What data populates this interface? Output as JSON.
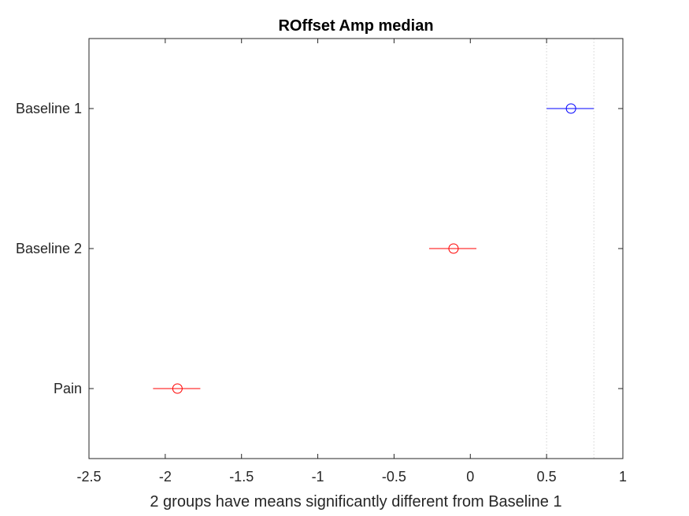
{
  "chart_data": {
    "type": "scatter",
    "title": "ROffset Amp median",
    "xlabel": "2 groups have means significantly different from Baseline 1",
    "ylabel": "",
    "xlim": [
      -2.5,
      1
    ],
    "x_ticks": [
      -2.5,
      -2,
      -1.5,
      -1,
      -0.5,
      0,
      0.5,
      1
    ],
    "x_tick_labels": [
      "-2.5",
      "-2",
      "-1.5",
      "-1",
      "-0.5",
      "0",
      "0.5",
      "1"
    ],
    "categories": [
      "Baseline 1",
      "Baseline 2",
      "Pain"
    ],
    "groups": [
      {
        "label": "Baseline 1",
        "mean": 0.66,
        "lower": 0.5,
        "upper": 0.81,
        "color": "#0000ff",
        "selected": true
      },
      {
        "label": "Baseline 2",
        "mean": -0.11,
        "lower": -0.27,
        "upper": 0.04,
        "color": "#ff0000",
        "selected": false
      },
      {
        "label": "Pain",
        "mean": -1.92,
        "lower": -2.08,
        "upper": -1.77,
        "color": "#ff0000",
        "selected": false
      }
    ],
    "reference_lines": [
      0.5,
      0.81
    ],
    "reference_line_color": "#d3d3d3",
    "grid": false,
    "legend": "none"
  }
}
